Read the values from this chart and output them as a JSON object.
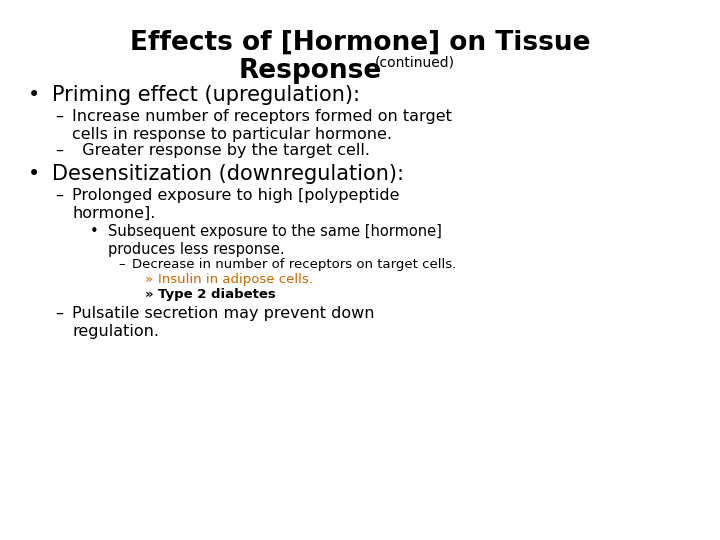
{
  "bg_color": "#ffffff",
  "title_line1": "Effects of [Hormone] on Tissue",
  "title_line2": "Response",
  "title_continued": "(continued)",
  "title_fontsize": 19,
  "title_continued_fontsize": 10,
  "text_color": "#000000",
  "link_color": "#cc6600",
  "lines": [
    {
      "indent": 0,
      "bullet": "•",
      "text": "Priming effect (upregulation):",
      "size": 15,
      "bold": false,
      "color": "#000000",
      "underline": false,
      "extra_space_after": 0.0
    },
    {
      "indent": 1,
      "bullet": "–",
      "text": "Increase number of receptors formed on target\ncells in response to particular hormone.",
      "size": 11.5,
      "bold": false,
      "color": "#000000",
      "underline": false,
      "extra_space_after": 0.0
    },
    {
      "indent": 1,
      "bullet": "–",
      "text": "  Greater response by the target cell.",
      "size": 11.5,
      "bold": false,
      "color": "#000000",
      "underline": false,
      "extra_space_after": 0.0
    },
    {
      "indent": 0,
      "bullet": "•",
      "text": "Desensitization (downregulation):",
      "size": 15,
      "bold": false,
      "color": "#000000",
      "underline": false,
      "extra_space_after": 0.0
    },
    {
      "indent": 1,
      "bullet": "–",
      "text": "Prolonged exposure to high [polypeptide\nhormone].",
      "size": 11.5,
      "bold": false,
      "color": "#000000",
      "underline": false,
      "extra_space_after": 0.0
    },
    {
      "indent": 2,
      "bullet": "•",
      "text": "Subsequent exposure to the same [hormone]\nproduces less response.",
      "size": 10.5,
      "bold": false,
      "color": "#000000",
      "underline": false,
      "extra_space_after": 0.0
    },
    {
      "indent": 3,
      "bullet": "–",
      "text": "Decrease in number of receptors on target cells.",
      "size": 9.5,
      "bold": false,
      "color": "#000000",
      "underline": false,
      "extra_space_after": 0.0
    },
    {
      "indent": 4,
      "bullet": "»",
      "text": "Insulin in adipose cells.",
      "size": 9.5,
      "bold": false,
      "color": "#cc6600",
      "underline": true,
      "extra_space_after": 0.0
    },
    {
      "indent": 4,
      "bullet": "»",
      "text": "Type 2 diabetes",
      "size": 9.5,
      "bold": true,
      "color": "#000000",
      "underline": true,
      "extra_space_after": 0.0
    },
    {
      "indent": 1,
      "bullet": "–",
      "text": "Pulsatile secretion may prevent down\nregulation.",
      "size": 11.5,
      "bold": false,
      "color": "#000000",
      "underline": false,
      "extra_space_after": 0.0
    }
  ]
}
